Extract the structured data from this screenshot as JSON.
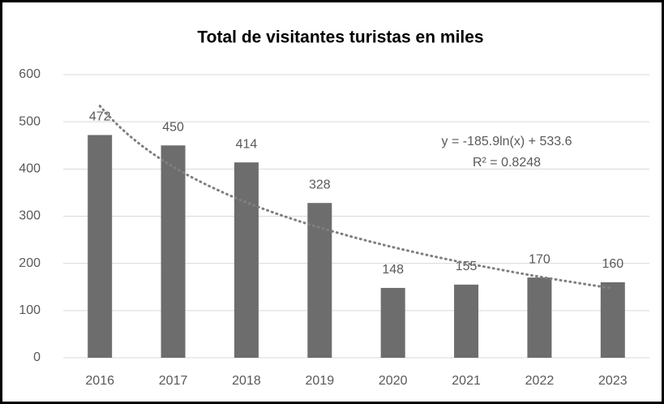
{
  "chart_data": {
    "type": "bar",
    "title": "Total de visitantes turistas en miles",
    "categories": [
      "2016",
      "2017",
      "2018",
      "2019",
      "2020",
      "2021",
      "2022",
      "2023"
    ],
    "values": [
      472,
      450,
      414,
      328,
      148,
      155,
      170,
      160
    ],
    "color": "#6d6d6d",
    "ylim": [
      0,
      600
    ],
    "yticks": [
      0,
      100,
      200,
      300,
      400,
      500,
      600
    ],
    "grid": true,
    "trendline": {
      "type": "logarithmic",
      "a": -185.9,
      "b": 533.6,
      "color": "#7f7f7f",
      "equation": "y = -185.9ln(x) + 533.6",
      "r_squared": "R² = 0.8248"
    }
  }
}
